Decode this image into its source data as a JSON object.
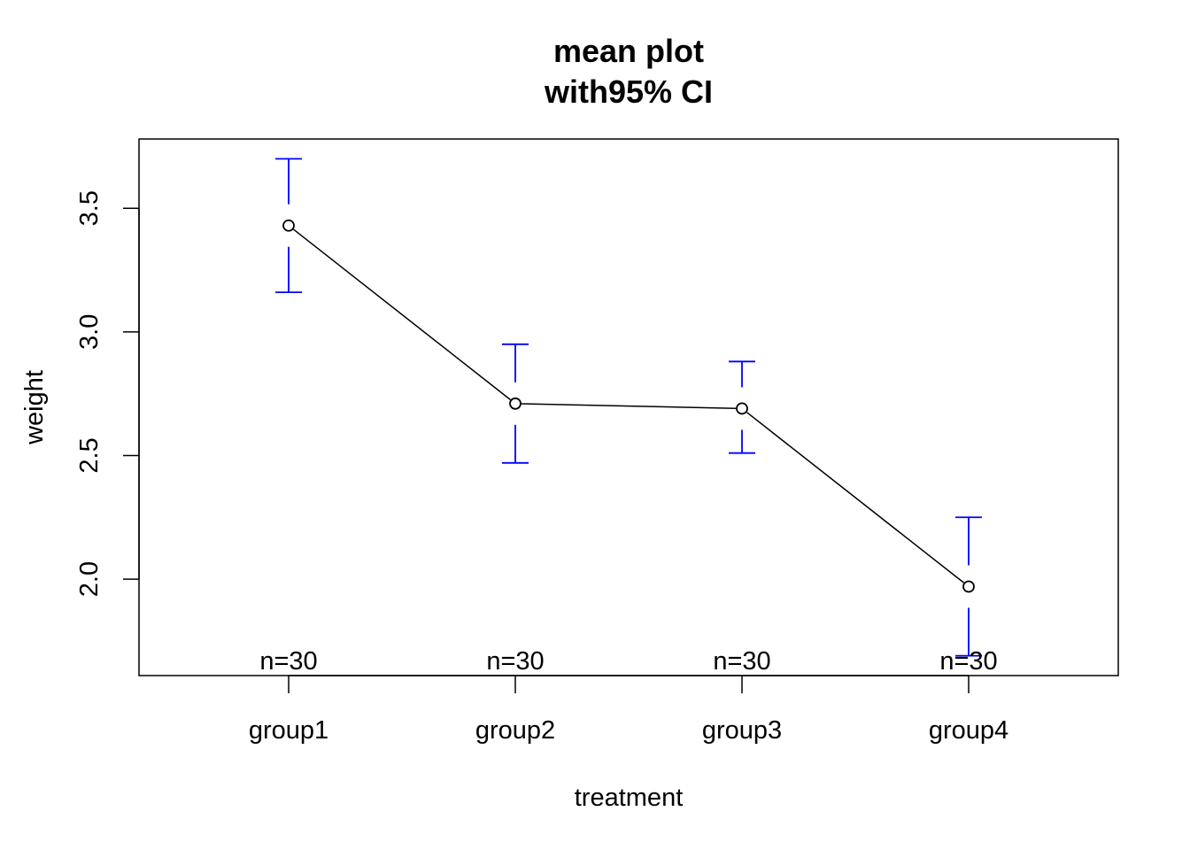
{
  "chart_data": {
    "type": "line",
    "title": "mean plot",
    "subtitle": "with95% CI",
    "xlabel": "treatment",
    "ylabel": "weight",
    "categories": [
      "group1",
      "group2",
      "group3",
      "group4"
    ],
    "means": [
      3.43,
      2.71,
      2.69,
      1.97
    ],
    "ci_lower": [
      3.16,
      2.47,
      2.51,
      1.69
    ],
    "ci_upper": [
      3.7,
      2.95,
      2.88,
      2.25
    ],
    "n_labels": [
      "n=30",
      "n=30",
      "n=30",
      "n=30"
    ],
    "ylim": [
      1.61,
      3.78
    ],
    "yticks": [
      "2.0",
      "2.5",
      "3.0",
      "3.5"
    ],
    "ytick_values": [
      2.0,
      2.5,
      3.0,
      3.5
    ],
    "grid": false,
    "colors": {
      "line": "#000000",
      "error_bars": "#0000ff",
      "points": "#000000"
    }
  }
}
